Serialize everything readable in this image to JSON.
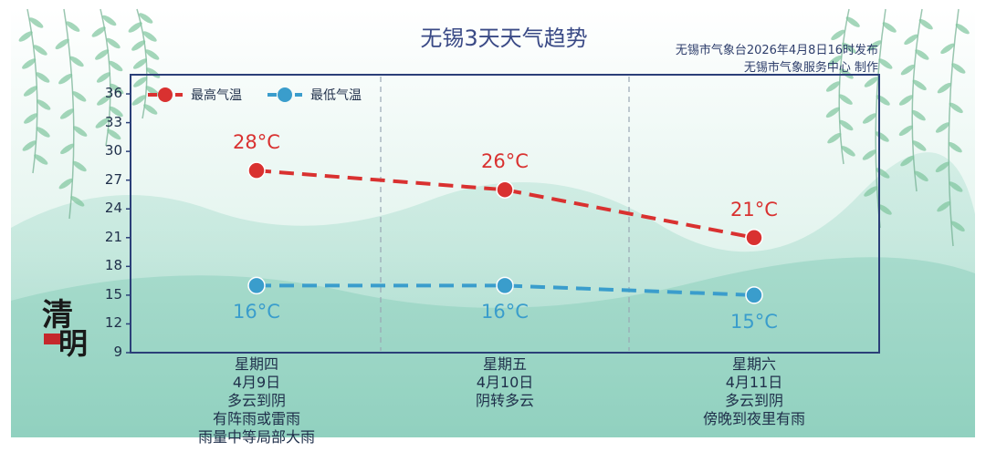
{
  "title": "无锡3天天气趋势",
  "source_line1": "无锡市气象台2026年4月8日16时发布",
  "source_line2": "无锡市气象服务中心  制作",
  "seal_text": "清明",
  "colors": {
    "high": "#d93130",
    "low": "#3a9dcc",
    "frame": "#2b3f78",
    "title": "#3a4a86"
  },
  "chart_data": {
    "type": "line",
    "y_ticks": [
      9,
      12,
      15,
      18,
      21,
      24,
      27,
      30,
      33,
      36
    ],
    "ylim": [
      9,
      38
    ],
    "grid": "vertical dashed separators between days",
    "legend_position": "top-left",
    "legend": [
      "最高气温",
      "最低气温"
    ],
    "categories": [
      {
        "weekday": "星期四",
        "date": "4月9日",
        "lines": [
          "多云到阴",
          "有阵雨或雷雨",
          "雨量中等局部大雨"
        ]
      },
      {
        "weekday": "星期五",
        "date": "4月10日",
        "lines": [
          "阴转多云"
        ]
      },
      {
        "weekday": "星期六",
        "date": "4月11日",
        "lines": [
          "多云到阴",
          "傍晚到夜里有雨"
        ]
      }
    ],
    "series": [
      {
        "name": "最高气温",
        "values": [
          28,
          26,
          21
        ],
        "labels": [
          "28°C",
          "26°C",
          "21°C"
        ]
      },
      {
        "name": "最低气温",
        "values": [
          16,
          16,
          15
        ],
        "labels": [
          "16°C",
          "16°C",
          "15°C"
        ]
      }
    ]
  }
}
